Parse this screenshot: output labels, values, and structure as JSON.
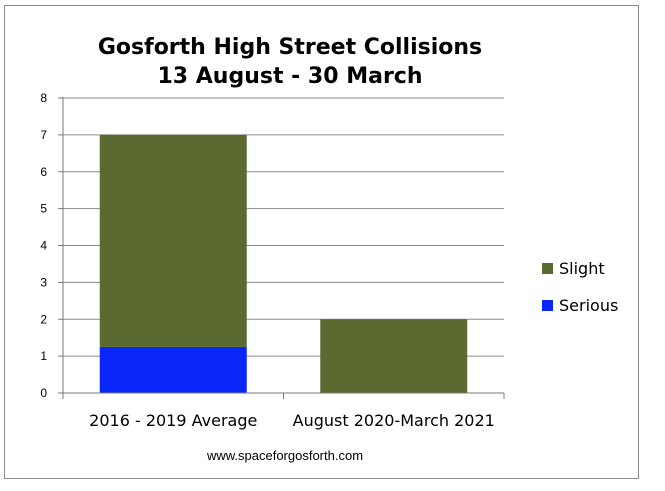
{
  "chart_data": {
    "type": "bar",
    "stacked": true,
    "title": "Gosforth High Street Collisions",
    "subtitle": "13 August - 30 March",
    "categories": [
      "2016 - 2019 Average",
      "August 2020-March 2021"
    ],
    "series": [
      {
        "name": "Serious",
        "values": [
          1.25,
          0
        ],
        "color": "#0a27fb"
      },
      {
        "name": "Slight",
        "values": [
          5.75,
          2
        ],
        "color": "#5a6a31"
      }
    ],
    "ylim": [
      0,
      8
    ],
    "yticks": [
      0,
      1,
      2,
      3,
      4,
      5,
      6,
      7,
      8
    ],
    "grid": true,
    "legend_position": "right",
    "legend_order": [
      "Slight",
      "Serious"
    ],
    "footer": "www.spaceforgosforth.com"
  }
}
